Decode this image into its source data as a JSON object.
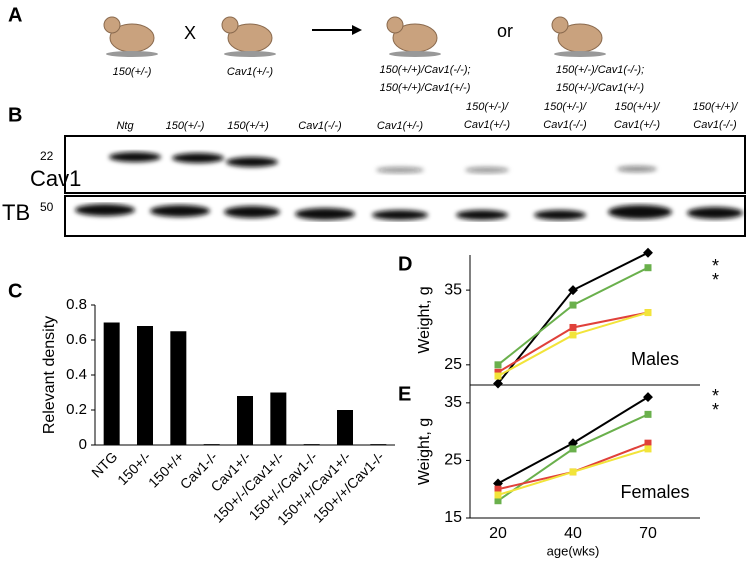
{
  "panel_a": {
    "label": "A",
    "parent1": "150(+/-)",
    "cross": "X",
    "parent2": "Cav1(+/-)",
    "offspring1": [
      "150(+/+)/Cav1(-/-);",
      "150(+/+)/Cav1(+/-)"
    ],
    "or": "or",
    "offspring2": [
      "150(+/-)/Cav1(-/-);",
      "150(+/-)/Cav1(+/-)"
    ]
  },
  "panel_b": {
    "label": "B",
    "lanes": [
      [
        "Ntg"
      ],
      [
        "150(+/-)"
      ],
      [
        "150(+/+)"
      ],
      [
        "Cav1(-/-)"
      ],
      [
        "Cav1(+/-)"
      ],
      [
        "150(+/-)/",
        "Cav1(+/-)"
      ],
      [
        "150(+/-)/",
        "Cav1(-/-)"
      ],
      [
        "150(+/+)/",
        "Cav1(+/-)"
      ],
      [
        "150(+/+)/",
        "Cav1(-/-)"
      ]
    ],
    "markers": [
      "22",
      "50"
    ],
    "rows": [
      "Cav1",
      "TB"
    ]
  },
  "chart_data": [
    {
      "type": "bar",
      "panel_label": "C",
      "ylabel": "Relevant density",
      "categories": [
        "NTG",
        "150+/-",
        "150+/+",
        "Cav1-/-",
        "Cav1+/-",
        "150+/-/Cav1+/-",
        "150+/-/Cav1-/-",
        "150+/+/Cav1+/-",
        "150+/+/Cav1-/-"
      ],
      "values": [
        0.7,
        0.68,
        0.65,
        0.005,
        0.28,
        0.3,
        0.005,
        0.2,
        0.005
      ],
      "color": "#000000",
      "ylim": [
        0,
        0.8
      ],
      "yticks": [
        0,
        0.2,
        0.4,
        0.6,
        0.8
      ]
    },
    {
      "type": "line",
      "panel_label": "D",
      "ylabel": "Weight, g",
      "annotation": "Males",
      "annotations": [
        "*",
        "*"
      ],
      "categories": [
        "20",
        "40",
        "70"
      ],
      "ylim": [
        22.3,
        39.7
      ],
      "yticks": [
        25,
        35
      ],
      "series": [
        {
          "color": "#000000",
          "values": [
            22.5,
            35,
            40
          ]
        },
        {
          "color": "#6ab04c",
          "values": [
            25,
            33,
            38
          ]
        },
        {
          "color": "#e0413a",
          "values": [
            24,
            30,
            32
          ]
        },
        {
          "color": "#f2e43a",
          "values": [
            23.5,
            29,
            32
          ]
        }
      ]
    },
    {
      "type": "line",
      "panel_label": "E",
      "ylabel": "Weight, g",
      "annotation": "Females",
      "annotations": [
        "*",
        "*"
      ],
      "xlabel": "age(wks)",
      "categories": [
        "20",
        "40",
        "70"
      ],
      "ylim": [
        15,
        38.1
      ],
      "yticks": [
        15,
        25,
        35
      ],
      "series": [
        {
          "color": "#000000",
          "values": [
            21,
            28,
            36
          ]
        },
        {
          "color": "#6ab04c",
          "values": [
            18,
            27,
            33
          ]
        },
        {
          "color": "#e0413a",
          "values": [
            20,
            23,
            28
          ]
        },
        {
          "color": "#f2e43a",
          "values": [
            19,
            23,
            27
          ]
        }
      ]
    }
  ]
}
